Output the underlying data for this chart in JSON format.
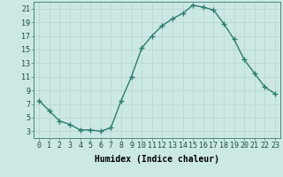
{
  "x": [
    0,
    1,
    2,
    3,
    4,
    5,
    6,
    7,
    8,
    9,
    10,
    11,
    12,
    13,
    14,
    15,
    16,
    17,
    18,
    19,
    20,
    21,
    22,
    23
  ],
  "y": [
    7.5,
    6.0,
    4.5,
    4.0,
    3.2,
    3.2,
    3.0,
    3.5,
    7.5,
    11.0,
    15.2,
    17.0,
    18.5,
    19.5,
    20.3,
    21.5,
    21.2,
    20.8,
    18.8,
    16.5,
    13.5,
    11.5,
    9.5,
    8.5
  ],
  "line_color": "#2d7d6e",
  "marker": "+",
  "marker_size": 4,
  "marker_lw": 1.0,
  "bg_color": "#cce8e4",
  "grid_color": "#b8d8d4",
  "xlabel": "Humidex (Indice chaleur)",
  "xlim": [
    -0.5,
    23.5
  ],
  "ylim": [
    2,
    22
  ],
  "yticks": [
    3,
    5,
    7,
    9,
    11,
    13,
    15,
    17,
    19,
    21
  ],
  "xticks": [
    0,
    1,
    2,
    3,
    4,
    5,
    6,
    7,
    8,
    9,
    10,
    11,
    12,
    13,
    14,
    15,
    16,
    17,
    18,
    19,
    20,
    21,
    22,
    23
  ],
  "xlabel_fontsize": 7,
  "tick_fontsize": 6,
  "line_width": 1.0
}
